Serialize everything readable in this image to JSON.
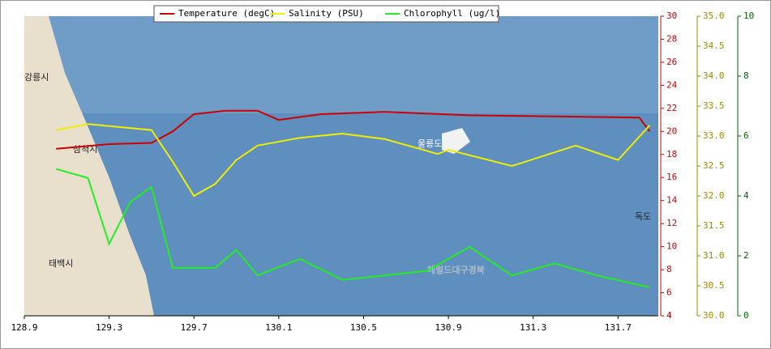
{
  "chart_data": {
    "type": "line",
    "xlim": [
      128.9,
      131.89
    ],
    "xticks": [
      128.9,
      129.3,
      129.7,
      130.1,
      130.5,
      130.9,
      131.3,
      131.7
    ],
    "ylim": [
      4,
      30
    ],
    "yticks": [
      4,
      6,
      8,
      10,
      12,
      14,
      16,
      18,
      20,
      22,
      24,
      26,
      28,
      30
    ],
    "y2lim": [
      30,
      35
    ],
    "y2ticks": [
      {
        "value": 30,
        "label": "30.0"
      },
      30.5,
      {
        "value": 31,
        "label": "31.0"
      },
      31.5,
      {
        "value": 32,
        "label": "32.0"
      },
      32.5,
      {
        "value": 33,
        "label": "33.0"
      },
      33.5,
      {
        "value": 34,
        "label": "34.0"
      },
      34.5,
      {
        "value": 35,
        "label": "35.0"
      }
    ],
    "y3lim": [
      0,
      10
    ],
    "y3ticks": [
      0,
      2,
      4,
      6,
      8,
      10
    ],
    "series": [
      {
        "name": "Temperature (degC)",
        "color": "#cc0000",
        "axis": "y",
        "x": [
          129.05,
          129.3,
          129.5,
          129.6,
          129.7,
          129.85,
          130.0,
          130.1,
          130.3,
          130.6,
          131.0,
          131.4,
          131.8,
          131.85
        ],
        "values": [
          18.5,
          18.9,
          19.0,
          20.0,
          21.5,
          21.8,
          21.8,
          21.0,
          21.5,
          21.7,
          21.4,
          21.3,
          21.2,
          20.0
        ]
      },
      {
        "name": "Salinity (PSU)",
        "color": "#eeee00",
        "axis": "y2",
        "x": [
          129.05,
          129.2,
          129.5,
          129.6,
          129.7,
          129.8,
          129.9,
          130.0,
          130.2,
          130.4,
          130.6,
          130.85,
          130.9,
          131.2,
          131.5,
          131.7,
          131.85
        ],
        "values": [
          33.1,
          33.2,
          33.1,
          32.57,
          32.0,
          32.2,
          32.6,
          32.84,
          32.97,
          33.04,
          32.95,
          32.7,
          32.77,
          32.5,
          32.84,
          32.6,
          33.18
        ]
      },
      {
        "name": "Chlorophyll (ug/l)",
        "color": "#22ee22",
        "axis": "y3",
        "x": [
          129.05,
          129.2,
          129.3,
          129.4,
          129.5,
          129.6,
          129.8,
          129.9,
          130.0,
          130.2,
          130.4,
          130.6,
          130.8,
          131.0,
          131.2,
          131.4,
          131.6,
          131.85
        ],
        "values": [
          4.9,
          4.6,
          2.4,
          3.8,
          4.3,
          1.6,
          1.6,
          2.2,
          1.35,
          1.9,
          1.2,
          1.35,
          1.5,
          2.3,
          1.35,
          1.75,
          1.35,
          0.95
        ]
      }
    ],
    "annotations": [
      "강릉시",
      "삼척시",
      "태백시",
      "울릉도",
      "독도",
      "헤럴드대구경북"
    ]
  }
}
